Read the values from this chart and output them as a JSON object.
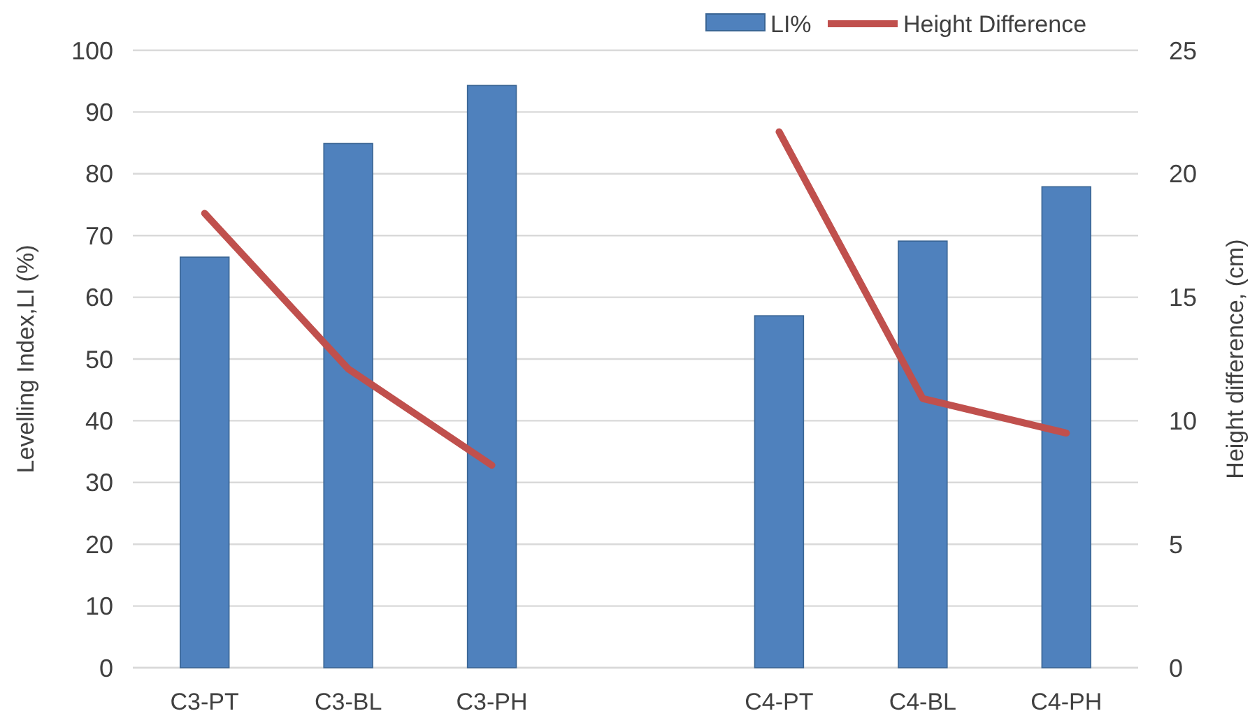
{
  "chart_data": {
    "type": "bar",
    "categories": [
      "C3-PT",
      "C3-BL",
      "C3-PH",
      null,
      "C4-PT",
      "C4-BL",
      "C4-PH"
    ],
    "series": [
      {
        "name": "LI%",
        "color": "#4f81bd",
        "values": [
          66.5,
          84.9,
          94.3,
          null,
          57,
          69.1,
          77.9
        ]
      },
      {
        "name": "Height Difference",
        "type": "line",
        "axis": "y2",
        "color": "#c0504d",
        "values": [
          18.4,
          12.1,
          8.2,
          null,
          21.7,
          10.9,
          9.5
        ]
      }
    ],
    "ylabel": "Levelling Index,LI (%)",
    "y2label": "Height difference, (cm)",
    "ylim": [
      0,
      100
    ],
    "yticks": [
      0,
      10,
      20,
      30,
      40,
      50,
      60,
      70,
      80,
      90,
      100
    ],
    "y2lim": [
      0,
      25
    ],
    "y2ticks": [
      0,
      5,
      10,
      15,
      20,
      25
    ],
    "grid": "y",
    "legend": "top right"
  }
}
